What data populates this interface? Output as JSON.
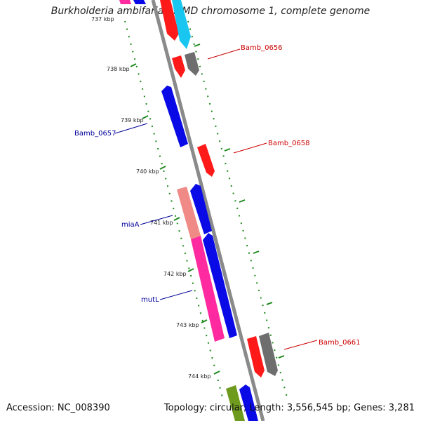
{
  "title": "Burkholderia ambifaria AMMD chromosome 1, complete genome",
  "footer": {
    "accession": "Accession: NC_008390",
    "stats": "Topology: circular; Length: 3,556,545 bp; Genes: 3,281"
  },
  "scale": {
    "top_cut_label": "737 kbp",
    "ticks": [
      "738 kbp",
      "739 kbp",
      "740 kbp",
      "741 kbp",
      "742 kbp",
      "743 kbp",
      "744 kbp"
    ]
  },
  "colors": {
    "backbone": "#8a8a8a",
    "tick": "#1e8a1e",
    "forward_label": "#cc0000",
    "reverse_label": "#000099",
    "red": "#ff1a1a",
    "blue": "#0a0ae6",
    "cyan": "#19c6f0",
    "gray": "#6e6e6e",
    "pink": "#ff2aa0",
    "salmon": "#f08a86",
    "olive": "#6e9a1e"
  },
  "genes": [
    {
      "label": "Bamb_0656",
      "strand": "forward"
    },
    {
      "label": "Bamb_0657",
      "strand": "reverse"
    },
    {
      "label": "Bamb_0658",
      "strand": "forward"
    },
    {
      "label": "miaA",
      "strand": "reverse"
    },
    {
      "label": "mutL",
      "strand": "reverse"
    },
    {
      "label": "Bamb_0661",
      "strand": "forward"
    }
  ]
}
